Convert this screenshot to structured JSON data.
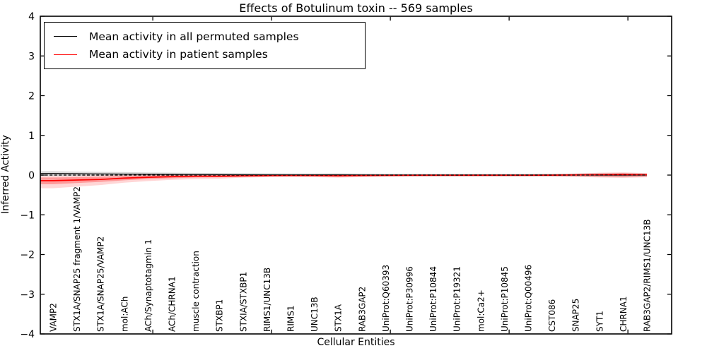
{
  "chart_data": {
    "type": "line",
    "title": "Effects of Botulinum toxin -- 569 samples",
    "xlabel": "Cellular Entities",
    "ylabel": "Inferred Activity",
    "ylim": [
      -4,
      4
    ],
    "yticks": [
      4,
      3,
      2,
      1,
      0,
      -1,
      -2,
      -3,
      -4
    ],
    "grid": false,
    "legend_position": "upper left",
    "xtick_marks_at_index": [
      4.2,
      9.2,
      14.2,
      19.2,
      24.2
    ],
    "categories": [
      "VAMP2",
      "STX1A/SNAP25 fragment 1/VAMP2",
      "STX1A/SNAP25/VAMP2",
      "mol:ACh",
      "ACh/Synaptotagmin 1",
      "ACh/CHRNA1",
      "muscle contraction",
      "STXBP1",
      "STXIA/STXBP1",
      "RIMS1/UNC13B",
      "RIMS1",
      "UNC13B",
      "STX1A",
      "RAB3GAP2",
      "UniProt:Q60393",
      "UniProt:P30996",
      "UniProt:P10844",
      "UniProt:P19321",
      "mol:Ca2+",
      "UniProt:P10845",
      "UniProt:Q00496",
      "CST086",
      "SNAP25",
      "SYT1",
      "CHRNA1",
      "RAB3GAP2/RIMS1/UNC13B"
    ],
    "series": [
      {
        "name": "Mean activity in all permuted samples",
        "color": "#000000",
        "style": "solid",
        "values": [
          0.04,
          0.035,
          0.03,
          0.025,
          0.02,
          0.015,
          0.012,
          0.01,
          0.008,
          0.006,
          0.005,
          0.004,
          0.004,
          0.003,
          0.003,
          0.003,
          0.002,
          0.002,
          0.002,
          0.002,
          0.002,
          0.002,
          0.002,
          0.002,
          0.002,
          0.002
        ]
      },
      {
        "name": "Mean activity in patient samples",
        "color": "#ff0000",
        "style": "solid",
        "values": [
          -0.14,
          -0.125,
          -0.11,
          -0.075,
          -0.055,
          -0.04,
          -0.03,
          -0.03,
          -0.02,
          -0.015,
          -0.012,
          -0.012,
          -0.018,
          -0.012,
          -0.008,
          -0.006,
          -0.005,
          -0.005,
          -0.005,
          -0.005,
          -0.005,
          -0.002,
          0.005,
          0.012,
          0.015,
          0.01
        ]
      }
    ],
    "bands": [
      {
        "name": "permuted-samples-range",
        "color": "#aaaaaa",
        "opacity": 0.45,
        "lower": [
          -0.02,
          -0.02,
          -0.02,
          -0.025,
          -0.025,
          -0.03,
          -0.03,
          -0.032,
          -0.032,
          -0.032,
          -0.032,
          -0.032,
          -0.034,
          -0.032,
          -0.03,
          -0.03,
          -0.03,
          -0.03,
          -0.03,
          -0.03,
          -0.03,
          -0.03,
          -0.034,
          -0.04,
          -0.044,
          -0.038
        ],
        "upper": [
          0.1,
          0.09,
          0.08,
          0.075,
          0.065,
          0.06,
          0.055,
          0.052,
          0.048,
          0.044,
          0.042,
          0.04,
          0.042,
          0.038,
          0.036,
          0.036,
          0.034,
          0.034,
          0.034,
          0.034,
          0.034,
          0.036,
          0.038,
          0.044,
          0.048,
          0.04
        ]
      },
      {
        "name": "patient-samples-range-outer",
        "color": "#ff0000",
        "opacity": 0.16,
        "lower": [
          -0.33,
          -0.29,
          -0.25,
          -0.19,
          -0.15,
          -0.12,
          -0.1,
          -0.09,
          -0.065,
          -0.05,
          -0.045,
          -0.05,
          -0.065,
          -0.05,
          -0.04,
          -0.035,
          -0.032,
          -0.03,
          -0.03,
          -0.03,
          -0.032,
          -0.035,
          -0.045,
          -0.06,
          -0.07,
          -0.055
        ],
        "upper": [
          -0.02,
          -0.015,
          -0.01,
          0.0,
          0.008,
          0.015,
          0.02,
          0.022,
          0.018,
          0.015,
          0.015,
          0.02,
          0.025,
          0.02,
          0.018,
          0.018,
          0.018,
          0.018,
          0.018,
          0.018,
          0.018,
          0.025,
          0.04,
          0.06,
          0.07,
          0.05
        ]
      },
      {
        "name": "patient-samples-range-inner",
        "color": "#ff0000",
        "opacity": 0.28,
        "lower": [
          -0.23,
          -0.2,
          -0.17,
          -0.13,
          -0.1,
          -0.08,
          -0.06,
          -0.055,
          -0.04,
          -0.03,
          -0.028,
          -0.03,
          -0.04,
          -0.03,
          -0.024,
          -0.02,
          -0.018,
          -0.017,
          -0.017,
          -0.017,
          -0.018,
          -0.02,
          -0.025,
          -0.035,
          -0.04,
          -0.032
        ],
        "upper": [
          -0.06,
          -0.05,
          -0.04,
          -0.025,
          -0.015,
          -0.005,
          0.0,
          0.002,
          0.0,
          -0.002,
          -0.002,
          0.0,
          0.004,
          0.0,
          0.002,
          0.004,
          0.005,
          0.005,
          0.005,
          0.005,
          0.005,
          0.008,
          0.018,
          0.03,
          0.04,
          0.025
        ]
      }
    ],
    "zero_line": {
      "y": 0,
      "color": "#000000",
      "style": "dashed"
    }
  }
}
